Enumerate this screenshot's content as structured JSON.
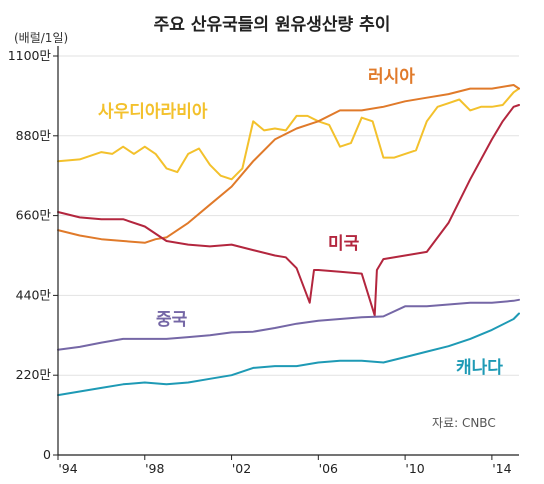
{
  "chart_data": {
    "type": "line",
    "title": "주요 산유국들의 원유생산량 추이",
    "unit_label": "(배럴/1일)",
    "source": "자료: CNBC",
    "ylim": [
      0,
      1100
    ],
    "y_ticks": [
      "0",
      "220만",
      "440만",
      "660만",
      "880만",
      "1100만"
    ],
    "y_tick_values": [
      0,
      220,
      440,
      660,
      880,
      1100
    ],
    "xlim": [
      1994,
      2015.25
    ],
    "x_ticks": [
      "'94",
      "'98",
      "'02",
      "'06",
      "'10",
      "'14"
    ],
    "x_tick_values": [
      1994,
      1998,
      2002,
      2006,
      2010,
      2014
    ],
    "series": [
      {
        "name": "사우디아라비아",
        "color": "#f3c12c",
        "x": [
          1994,
          1995,
          1996,
          1996.5,
          1997,
          1997.5,
          1998,
          1998.5,
          1999,
          1999.5,
          2000,
          2000.5,
          2001,
          2001.5,
          2002,
          2002.5,
          2003,
          2003.5,
          2004,
          2004.5,
          2005,
          2005.5,
          2006,
          2006.5,
          2007,
          2007.5,
          2008,
          2008.5,
          2009,
          2009.5,
          2010,
          2010.5,
          2011,
          2011.5,
          2012,
          2012.5,
          2013,
          2013.5,
          2014,
          2014.5,
          2015,
          2015.25
        ],
        "values": [
          810,
          815,
          835,
          830,
          850,
          830,
          850,
          830,
          790,
          780,
          830,
          845,
          800,
          770,
          760,
          790,
          920,
          895,
          900,
          895,
          935,
          935,
          920,
          910,
          850,
          860,
          930,
          920,
          820,
          820,
          830,
          840,
          920,
          960,
          970,
          980,
          950,
          960,
          960,
          965,
          1000,
          1010
        ]
      },
      {
        "name": "러시아",
        "color": "#e07a2a",
        "x": [
          1994,
          1995,
          1996,
          1997,
          1998,
          1998.5,
          1999,
          2000,
          2001,
          2002,
          2003,
          2004,
          2005,
          2006,
          2007,
          2008,
          2009,
          2010,
          2011,
          2012,
          2013,
          2014,
          2015,
          2015.25
        ],
        "values": [
          620,
          605,
          595,
          590,
          585,
          595,
          600,
          640,
          690,
          740,
          810,
          870,
          900,
          920,
          950,
          950,
          960,
          975,
          985,
          995,
          1010,
          1010,
          1020,
          1010
        ]
      },
      {
        "name": "미국",
        "color": "#b3263e",
        "x": [
          1994,
          1995,
          1996,
          1997,
          1998,
          1999,
          2000,
          2001,
          2002,
          2003,
          2004,
          2004.5,
          2005,
          2005.6,
          2005.8,
          2006,
          2007,
          2008,
          2008.6,
          2008.7,
          2009,
          2010,
          2011,
          2012,
          2013,
          2014,
          2014.5,
          2015,
          2015.25
        ],
        "values": [
          670,
          655,
          650,
          650,
          630,
          590,
          580,
          575,
          580,
          565,
          550,
          545,
          515,
          420,
          510,
          510,
          505,
          500,
          385,
          510,
          540,
          550,
          560,
          640,
          760,
          870,
          920,
          960,
          965
        ]
      },
      {
        "name": "중국",
        "color": "#7567a6",
        "x": [
          1994,
          1995,
          1996,
          1997,
          1998,
          1999,
          2000,
          2001,
          2002,
          2003,
          2004,
          2005,
          2006,
          2007,
          2008,
          2009,
          2010,
          2011,
          2012,
          2013,
          2014,
          2015,
          2015.25
        ],
        "values": [
          290,
          298,
          310,
          320,
          320,
          320,
          325,
          330,
          338,
          340,
          350,
          362,
          370,
          375,
          380,
          382,
          410,
          410,
          415,
          420,
          420,
          425,
          428
        ]
      },
      {
        "name": "캐나다",
        "color": "#1e9ab5",
        "x": [
          1994,
          1995,
          1996,
          1997,
          1998,
          1999,
          2000,
          2001,
          2002,
          2003,
          2004,
          2005,
          2006,
          2007,
          2008,
          2009,
          2010,
          2011,
          2012,
          2013,
          2014,
          2015,
          2015.25
        ],
        "values": [
          165,
          175,
          185,
          195,
          200,
          195,
          200,
          210,
          220,
          240,
          245,
          245,
          255,
          260,
          260,
          255,
          270,
          285,
          300,
          320,
          345,
          375,
          390
        ]
      }
    ]
  }
}
